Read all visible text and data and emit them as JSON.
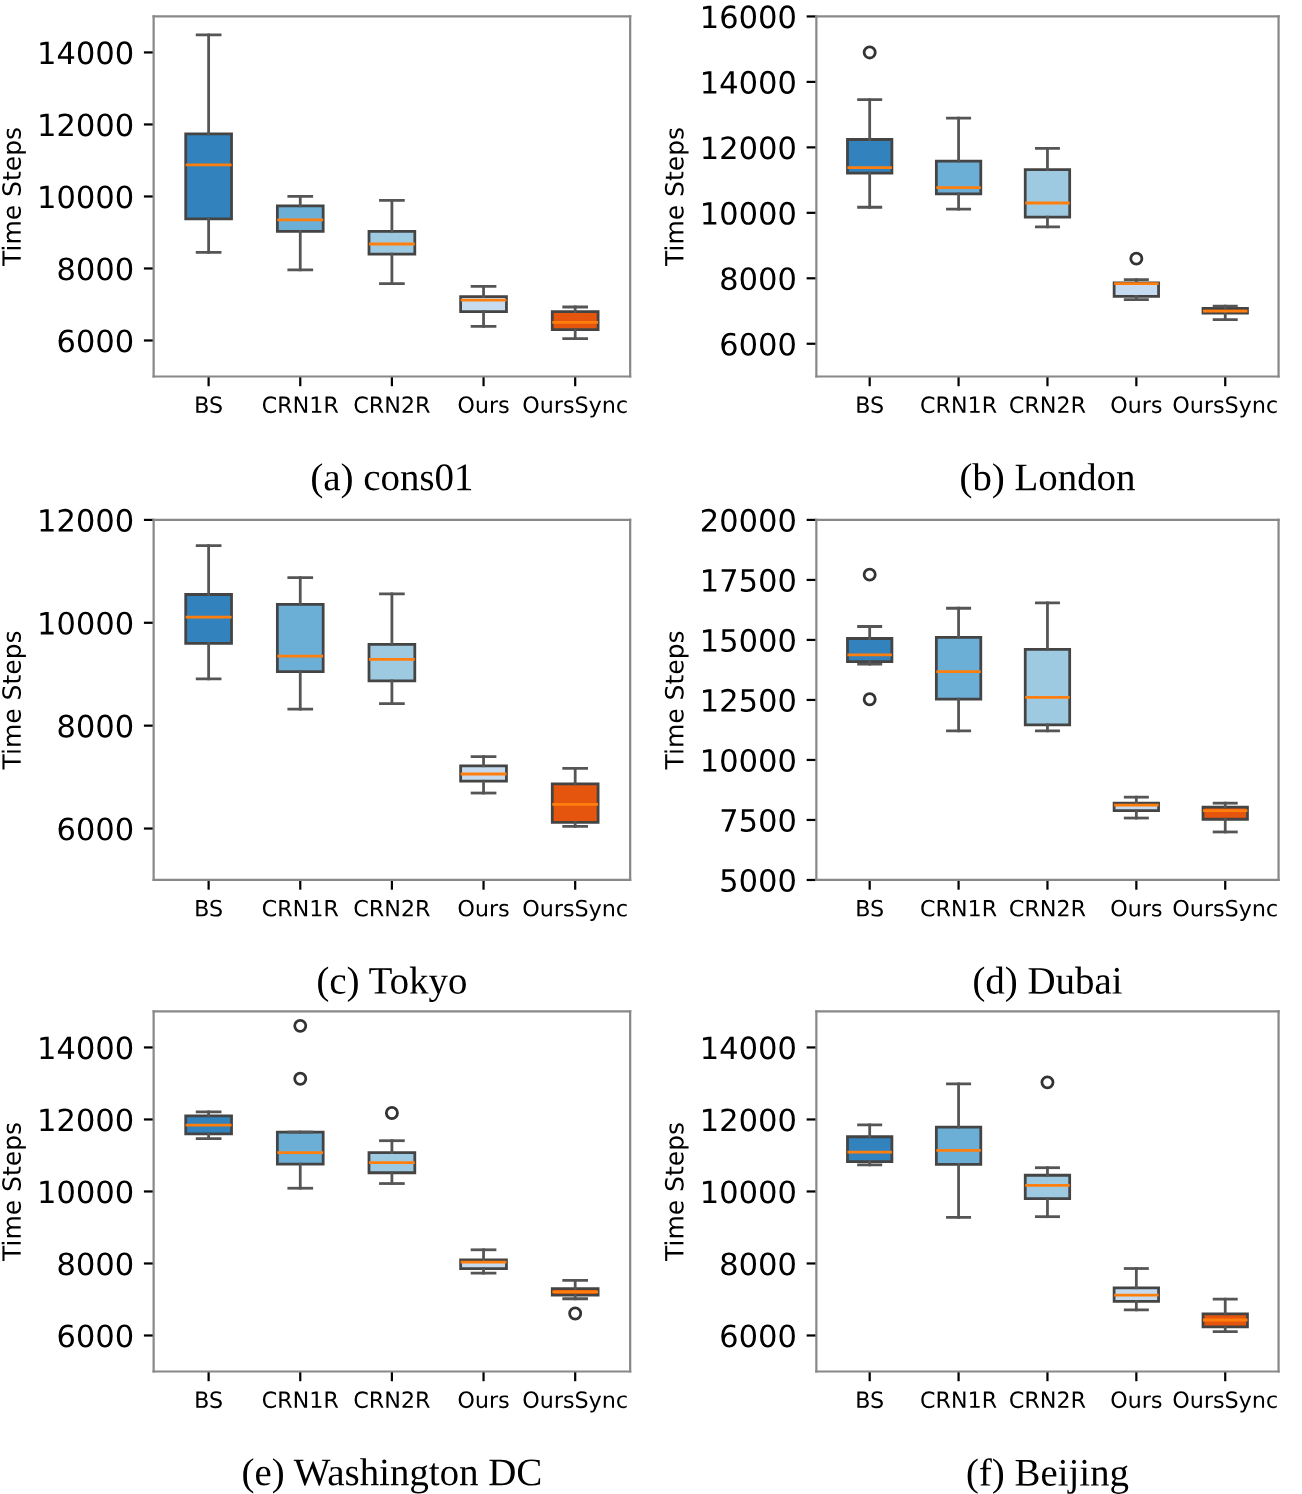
{
  "chart_data": [
    {
      "type": "box",
      "ylabel": "Time Steps",
      "annotations": [
        "(a) cons01"
      ],
      "categories": [
        "BS",
        "CRN1R",
        "CRN2R",
        "Ours",
        "OursSync"
      ],
      "colors": [
        "#3182bd",
        "#6baed6",
        "#9ecae1",
        "#c6dbef",
        "#e6550d"
      ],
      "ylim": [
        5000,
        15000
      ],
      "yticks": [
        6000,
        8000,
        10000,
        12000,
        14000
      ],
      "grid": false,
      "boxes": [
        {
          "low": 8450,
          "q1": 9380,
          "median": 10880,
          "q3": 11740,
          "high": 14490
        },
        {
          "low": 7960,
          "q1": 9030,
          "median": 9350,
          "q3": 9740,
          "high": 10000
        },
        {
          "low": 7580,
          "q1": 8400,
          "median": 8680,
          "q3": 9030,
          "high": 9890
        },
        {
          "low": 6390,
          "q1": 6800,
          "median": 7120,
          "q3": 7220,
          "high": 7500
        },
        {
          "low": 6050,
          "q1": 6300,
          "median": 6500,
          "q3": 6800,
          "high": 6930
        }
      ]
    },
    {
      "type": "box",
      "ylabel": "Time Steps",
      "annotations": [
        "(b) London"
      ],
      "categories": [
        "BS",
        "CRN1R",
        "CRN2R",
        "Ours",
        "OursSync"
      ],
      "colors": [
        "#3182bd",
        "#6baed6",
        "#9ecae1",
        "#c6dbef",
        "#e6550d"
      ],
      "ylim": [
        5000,
        16000
      ],
      "yticks": [
        6000,
        8000,
        10000,
        12000,
        14000,
        16000
      ],
      "grid": false,
      "boxes": [
        {
          "low": 10170,
          "q1": 11210,
          "median": 11380,
          "q3": 12240,
          "high": 13460,
          "outliers": [
            14900
          ]
        },
        {
          "low": 10110,
          "q1": 10580,
          "median": 10770,
          "q3": 11580,
          "high": 12890
        },
        {
          "low": 9570,
          "q1": 9870,
          "median": 10300,
          "q3": 11320,
          "high": 11970
        },
        {
          "low": 7350,
          "q1": 7450,
          "median": 7840,
          "q3": 7860,
          "high": 7960,
          "outliers": [
            8600
          ]
        },
        {
          "low": 6740,
          "q1": 6940,
          "median": 7000,
          "q3": 7080,
          "high": 7150
        }
      ]
    },
    {
      "type": "box",
      "ylabel": "Time Steps",
      "annotations": [
        "(c) Tokyo"
      ],
      "categories": [
        "BS",
        "CRN1R",
        "CRN2R",
        "Ours",
        "OursSync"
      ],
      "colors": [
        "#3182bd",
        "#6baed6",
        "#9ecae1",
        "#c6dbef",
        "#e6550d"
      ],
      "ylim": [
        5000,
        12000
      ],
      "yticks": [
        6000,
        8000,
        10000,
        12000
      ],
      "grid": false,
      "boxes": [
        {
          "low": 8910,
          "q1": 9600,
          "median": 10110,
          "q3": 10550,
          "high": 11500
        },
        {
          "low": 8320,
          "q1": 9050,
          "median": 9350,
          "q3": 10360,
          "high": 10880
        },
        {
          "low": 8430,
          "q1": 8870,
          "median": 9290,
          "q3": 9580,
          "high": 10560
        },
        {
          "low": 6690,
          "q1": 6920,
          "median": 7060,
          "q3": 7220,
          "high": 7400
        },
        {
          "low": 6040,
          "q1": 6120,
          "median": 6470,
          "q3": 6870,
          "high": 7170
        }
      ]
    },
    {
      "type": "box",
      "ylabel": "Time Steps",
      "annotations": [
        "(d) Dubai"
      ],
      "categories": [
        "BS",
        "CRN1R",
        "CRN2R",
        "Ours",
        "OursSync"
      ],
      "colors": [
        "#3182bd",
        "#6baed6",
        "#9ecae1",
        "#c6dbef",
        "#e6550d"
      ],
      "ylim": [
        5000,
        20000
      ],
      "yticks": [
        5000,
        7500,
        10000,
        12500,
        15000,
        17500,
        20000
      ],
      "grid": false,
      "boxes": [
        {
          "low": 13990,
          "q1": 14100,
          "median": 14380,
          "q3": 15060,
          "high": 15560,
          "outliers": [
            17720,
            12530
          ]
        },
        {
          "low": 11210,
          "q1": 12530,
          "median": 13680,
          "q3": 15110,
          "high": 16320
        },
        {
          "low": 11210,
          "q1": 11460,
          "median": 12610,
          "q3": 14610,
          "high": 16540
        },
        {
          "low": 7580,
          "q1": 7890,
          "median": 8120,
          "q3": 8200,
          "high": 8450
        },
        {
          "low": 7000,
          "q1": 7530,
          "median": 7890,
          "q3": 8030,
          "high": 8200
        }
      ]
    },
    {
      "type": "box",
      "ylabel": "Time Steps",
      "annotations": [
        "(e) Washington DC"
      ],
      "categories": [
        "BS",
        "CRN1R",
        "CRN2R",
        "Ours",
        "OursSync"
      ],
      "colors": [
        "#3182bd",
        "#6baed6",
        "#9ecae1",
        "#c6dbef",
        "#e6550d"
      ],
      "ylim": [
        5000,
        15000
      ],
      "yticks": [
        6000,
        8000,
        10000,
        12000,
        14000
      ],
      "grid": false,
      "boxes": [
        {
          "low": 11470,
          "q1": 11600,
          "median": 11840,
          "q3": 12100,
          "high": 12210
        },
        {
          "low": 10090,
          "q1": 10760,
          "median": 11080,
          "q3": 11650,
          "high": 11650,
          "outliers": [
            14600,
            13130
          ]
        },
        {
          "low": 10220,
          "q1": 10520,
          "median": 10800,
          "q3": 11080,
          "high": 11410,
          "outliers": [
            12180
          ]
        },
        {
          "low": 7730,
          "q1": 7860,
          "median": 8040,
          "q3": 8100,
          "high": 8380
        },
        {
          "low": 7020,
          "q1": 7120,
          "median": 7210,
          "q3": 7300,
          "high": 7530,
          "outliers": [
            6610
          ]
        }
      ]
    },
    {
      "type": "box",
      "ylabel": "Time Steps",
      "annotations": [
        "(f) Beijing"
      ],
      "categories": [
        "BS",
        "CRN1R",
        "CRN2R",
        "Ours",
        "OursSync"
      ],
      "colors": [
        "#3182bd",
        "#6baed6",
        "#9ecae1",
        "#c6dbef",
        "#e6550d"
      ],
      "ylim": [
        5000,
        15000
      ],
      "yticks": [
        6000,
        8000,
        10000,
        12000,
        14000
      ],
      "grid": false,
      "boxes": [
        {
          "low": 10740,
          "q1": 10830,
          "median": 11090,
          "q3": 11520,
          "high": 11850
        },
        {
          "low": 9280,
          "q1": 10750,
          "median": 11140,
          "q3": 11790,
          "high": 12990
        },
        {
          "low": 9300,
          "q1": 9800,
          "median": 10170,
          "q3": 10450,
          "high": 10660,
          "outliers": [
            13030
          ]
        },
        {
          "low": 6710,
          "q1": 6950,
          "median": 7120,
          "q3": 7320,
          "high": 7860
        },
        {
          "low": 6110,
          "q1": 6240,
          "median": 6430,
          "q3": 6600,
          "high": 7010
        }
      ]
    }
  ]
}
